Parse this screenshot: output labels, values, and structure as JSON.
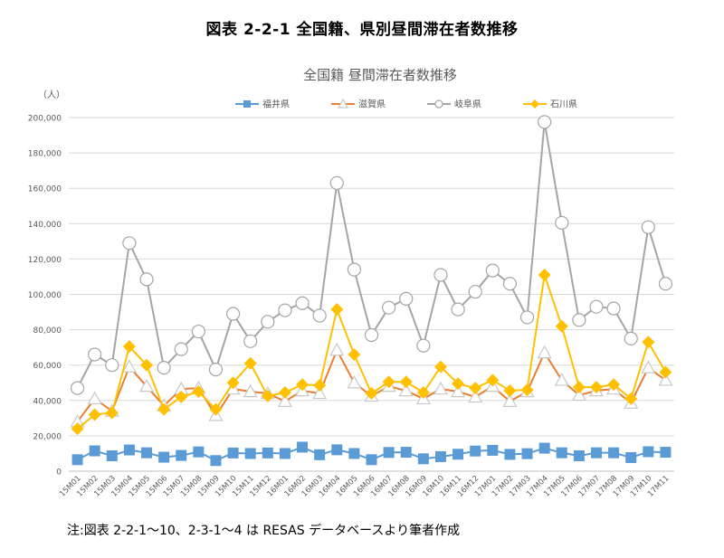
{
  "figure_title": "図表 2-2-1 全国籍、県別昼間滞在者数推移",
  "note": "注:図表 2-2-1～10、2-3-1～4 は RESAS データベースより筆者作成",
  "chart_data": {
    "type": "line",
    "title": "全国籍 昼間滞在者数推移",
    "ylabel": "（人）",
    "ylim": [
      0,
      200000
    ],
    "yticks": [
      0,
      20000,
      40000,
      60000,
      80000,
      100000,
      120000,
      140000,
      160000,
      180000,
      200000
    ],
    "ytick_labels": [
      "0",
      "20,000",
      "40,000",
      "60,000",
      "80,000",
      "100,000",
      "120,000",
      "140,000",
      "160,000",
      "180,000",
      "200,000"
    ],
    "grid": true,
    "legend_position": "top",
    "categories": [
      "15M01",
      "15M02",
      "15M03",
      "15M04",
      "15M05",
      "15M06",
      "15M07",
      "15M08",
      "15M09",
      "15M10",
      "15M11",
      "15M12",
      "16M01",
      "16M02",
      "16M03",
      "16M04",
      "16M05",
      "16M06",
      "16M07",
      "16M08",
      "16M09",
      "16M10",
      "16M11",
      "16M12",
      "17M01",
      "17M02",
      "17M03",
      "17M04",
      "17M05",
      "17M06",
      "17M07",
      "17M08",
      "17M09",
      "17M10",
      "17M11"
    ],
    "series": [
      {
        "name": "福井県",
        "color": "#5b9bd5",
        "marker": "square",
        "values": [
          6500,
          11500,
          8700,
          12000,
          10400,
          7900,
          8900,
          10900,
          6000,
          10300,
          10000,
          10300,
          10000,
          13600,
          9300,
          12100,
          10000,
          6500,
          10600,
          10700,
          7000,
          8200,
          9600,
          11400,
          11800,
          9500,
          9900,
          13000,
          10400,
          8700,
          10400,
          10400,
          7700,
          11000,
          10700
        ]
      },
      {
        "name": "滋賀県",
        "color": "#ed7d31",
        "marker": "triangle-open",
        "values": [
          28000,
          41000,
          34000,
          59000,
          48000,
          37000,
          46500,
          47000,
          31500,
          46500,
          45000,
          44000,
          39500,
          45500,
          44000,
          68500,
          50000,
          42500,
          48000,
          45500,
          41000,
          46500,
          45000,
          42000,
          48000,
          39500,
          45000,
          67000,
          51500,
          43000,
          45500,
          46500,
          38500,
          58500,
          51500
        ]
      },
      {
        "name": "岐阜県",
        "color": "#a5a5a5",
        "marker": "circle-open",
        "values": [
          47000,
          66000,
          60000,
          129000,
          108500,
          58500,
          69000,
          79000,
          57500,
          89000,
          73500,
          84500,
          91000,
          95000,
          88000,
          163000,
          114000,
          77000,
          92500,
          97500,
          71000,
          111000,
          91500,
          101500,
          113500,
          106000,
          87000,
          197500,
          140500,
          85500,
          93000,
          92000,
          75000,
          138000,
          106000
        ]
      },
      {
        "name": "石川県",
        "color": "#ffc000",
        "marker": "diamond",
        "values": [
          24000,
          32000,
          33000,
          70500,
          60000,
          35000,
          42000,
          45000,
          35000,
          50000,
          61000,
          42500,
          44500,
          49000,
          48500,
          91500,
          66000,
          44000,
          50500,
          50500,
          44500,
          59000,
          49500,
          47000,
          51500,
          45500,
          46000,
          111000,
          82000,
          47500,
          47500,
          49000,
          41000,
          73000,
          56000
        ]
      }
    ]
  }
}
